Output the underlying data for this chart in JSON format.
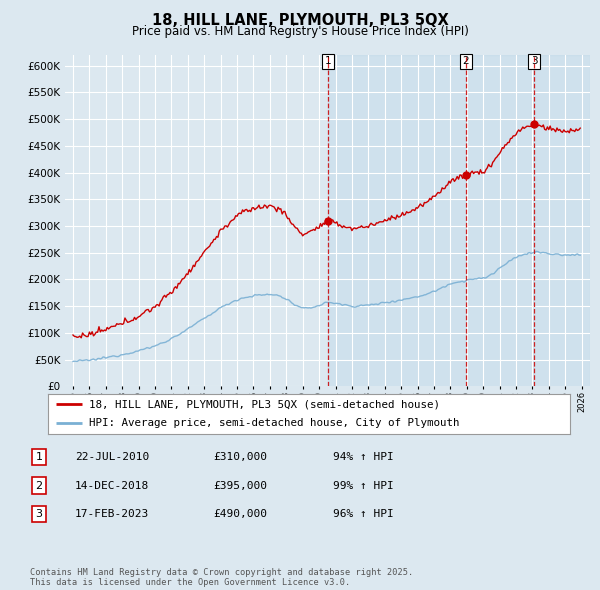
{
  "title1": "18, HILL LANE, PLYMOUTH, PL3 5QX",
  "title2": "Price paid vs. HM Land Registry's House Price Index (HPI)",
  "red_label": "18, HILL LANE, PLYMOUTH, PL3 5QX (semi-detached house)",
  "blue_label": "HPI: Average price, semi-detached house, City of Plymouth",
  "sales": [
    {
      "num": 1,
      "date": "22-JUL-2010",
      "price": 310000,
      "pct": "94%",
      "x": 2010.55
    },
    {
      "num": 2,
      "date": "14-DEC-2018",
      "price": 395000,
      "pct": "99%",
      "x": 2018.95
    },
    {
      "num": 3,
      "date": "17-FEB-2023",
      "price": 490000,
      "pct": "96%",
      "x": 2023.12
    }
  ],
  "ylim": [
    0,
    620000
  ],
  "xlim": [
    1994.5,
    2026.5
  ],
  "background_color": "#dce8f0",
  "plot_bg": "#dce8f0",
  "grid_color": "#ffffff",
  "red_color": "#cc0000",
  "blue_color": "#7ab0d4",
  "vline_color": "#cc0000",
  "shade_color": "#c8dcee",
  "footnote": "Contains HM Land Registry data © Crown copyright and database right 2025.\nThis data is licensed under the Open Government Licence v3.0."
}
